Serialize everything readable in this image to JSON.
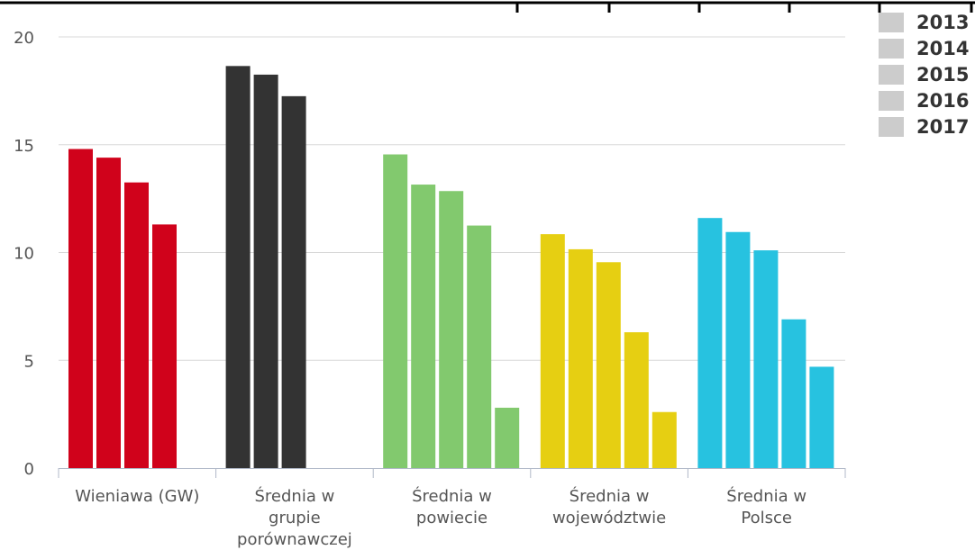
{
  "chart_data": {
    "type": "bar",
    "categories": [
      [
        "Wieniawa (GW)"
      ],
      [
        "Średnia w",
        "grupie",
        "porównawczej"
      ],
      [
        "Średnia w",
        "powiecie"
      ],
      [
        "Średnia w",
        "województwie"
      ],
      [
        "Średnia w",
        "Polsce"
      ]
    ],
    "category_colors": [
      "#d0021b",
      "#333333",
      "#82c96e",
      "#e6cf12",
      "#27c2e0"
    ],
    "values": [
      [
        14.8,
        14.4,
        13.25,
        11.3
      ],
      [
        18.65,
        18.25,
        17.25
      ],
      [
        14.55,
        13.15,
        12.85,
        11.25,
        2.8
      ],
      [
        10.85,
        10.15,
        9.55,
        6.3,
        2.6
      ],
      [
        11.6,
        10.95,
        10.1,
        6.9,
        4.7
      ]
    ],
    "y_ticks": [
      0,
      5,
      10,
      15,
      20
    ],
    "ylim": [
      0,
      20
    ],
    "grid": true,
    "legend": {
      "position": "top-right",
      "entries": [
        "2013",
        "2014",
        "2015",
        "2016",
        "2017"
      ],
      "swatch_color": "#cccccc"
    }
  }
}
